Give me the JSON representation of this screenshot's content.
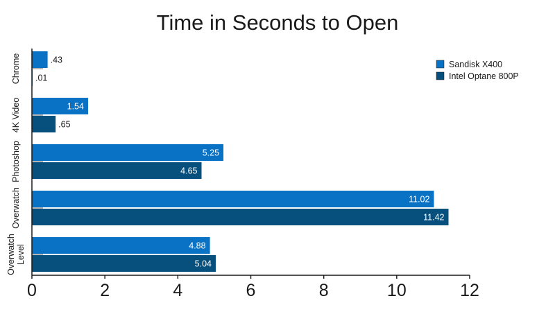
{
  "chart_data": {
    "type": "bar",
    "orientation": "horizontal",
    "title": "Time in Seconds to Open",
    "xlabel": "",
    "ylabel": "",
    "categories": [
      "Chrome",
      "4K Video",
      "Photoshop",
      "Overwatch",
      "Overwatch Level"
    ],
    "category_label_lines": [
      [
        "Chrome"
      ],
      [
        "4K Video"
      ],
      [
        "Photoshop"
      ],
      [
        "Overwatch"
      ],
      [
        "Overwatch",
        "Level"
      ]
    ],
    "series": [
      {
        "name": "Sandisk X400",
        "color": "#0a72c4",
        "values": [
          0.43,
          1.54,
          5.25,
          11.02,
          4.88
        ],
        "labels": [
          ".43",
          "1.54",
          "5.25",
          "11.02",
          "4.88"
        ]
      },
      {
        "name": "Intel Optane 800P",
        "color": "#07507e",
        "values": [
          0.01,
          0.65,
          4.65,
          11.42,
          5.04
        ],
        "labels": [
          ".01",
          ".65",
          "4.65",
          "11.42",
          "5.04"
        ]
      }
    ],
    "xlim": [
      0,
      12
    ],
    "xticks": [
      0,
      2,
      4,
      6,
      8,
      10,
      12
    ],
    "grid": false,
    "legend_position": "top-right"
  }
}
